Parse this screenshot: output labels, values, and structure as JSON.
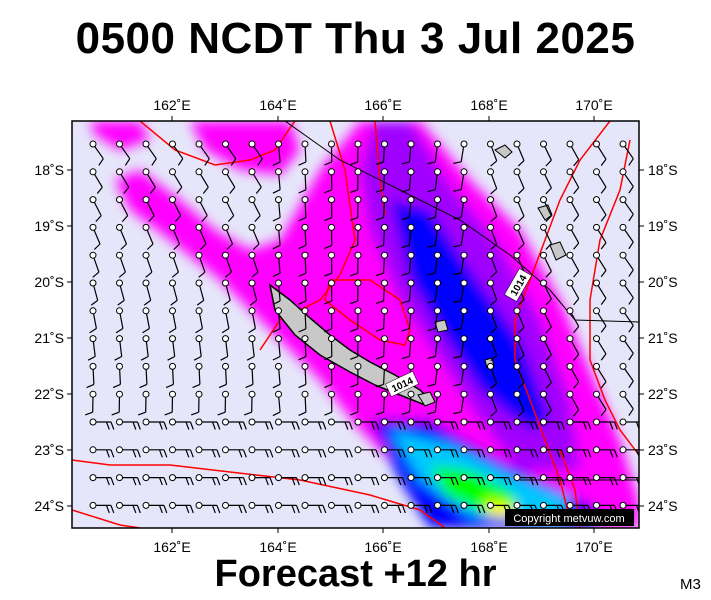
{
  "title": "0500 NCDT Thu 3 Jul 2025",
  "footer": "Forecast +12 hr",
  "model_code": "M3",
  "copyright": "Copyright metvuw.com",
  "isobar_label": "1014",
  "axes": {
    "lon_labels": [
      "162˚E",
      "164˚E",
      "166˚E",
      "168˚E",
      "170˚E"
    ],
    "lat_labels": [
      "18˚S",
      "19˚S",
      "20˚S",
      "21˚S",
      "22˚S",
      "23˚S",
      "24˚S"
    ]
  },
  "colors": {
    "background_sea": "#e6e6fa",
    "precip_light": "#ff00ff",
    "precip_medium": "#a000ff",
    "precip_heavy": "#0000ff",
    "precip_very_heavy": "#00c8ff",
    "precip_extreme": "#00ff00",
    "precip_max": "#ffff00",
    "isobar": "#ff0000"
  }
}
